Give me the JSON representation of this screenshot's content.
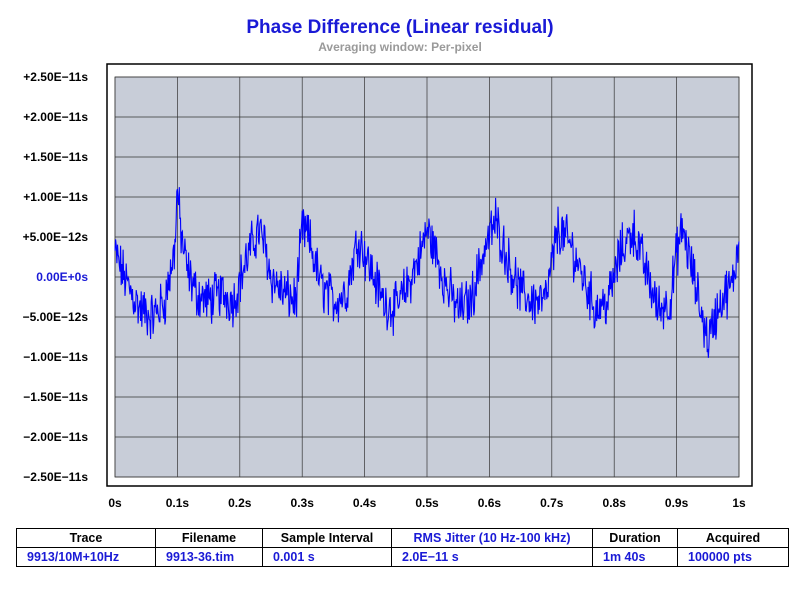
{
  "title": "Phase Difference (Linear residual)",
  "subtitle": "Averaging window: Per-pixel",
  "colors": {
    "trace": "#0000ff",
    "plot_bg": "#c8cdd8",
    "title": "#1a1ad6",
    "zero_label": "#1a1ad6"
  },
  "chart_data": {
    "type": "line",
    "title": "Phase Difference (Linear residual)",
    "subtitle": "Averaging window: Per-pixel",
    "xlabel": "",
    "ylabel": "",
    "xlim": [
      0,
      1
    ],
    "ylim": [
      -2.5e-11,
      2.5e-11
    ],
    "grid": true,
    "x_ticks": [
      0,
      0.1,
      0.2,
      0.3,
      0.4,
      0.5,
      0.6,
      0.7,
      0.8,
      0.9,
      1.0
    ],
    "x_tick_labels": [
      "0s",
      "0.1s",
      "0.2s",
      "0.3s",
      "0.4s",
      "0.5s",
      "0.6s",
      "0.7s",
      "0.8s",
      "0.9s",
      "1s"
    ],
    "y_ticks": [
      2.5e-11,
      2e-11,
      1.5e-11,
      1e-11,
      5e-12,
      0,
      -5e-12,
      -1e-11,
      -1.5e-11,
      -2e-11,
      -2.5e-11
    ],
    "y_tick_labels": [
      "+2.50E−11s",
      "+2.00E−11s",
      "+1.50E−11s",
      "+1.00E−11s",
      "+5.00E−12s",
      "0.00E+0s",
      "−5.00E−12s",
      "−1.00E−11s",
      "−1.50E−11s",
      "−2.00E−11s",
      "−2.50E−11s"
    ],
    "series": [
      {
        "x": [
          0,
          0.02,
          0.04,
          0.06,
          0.08,
          0.095,
          0.1,
          0.105,
          0.115,
          0.13,
          0.15,
          0.17,
          0.19,
          0.21,
          0.23,
          0.24,
          0.25,
          0.27,
          0.29,
          0.3,
          0.31,
          0.33,
          0.35,
          0.37,
          0.39,
          0.41,
          0.43,
          0.45,
          0.47,
          0.49,
          0.5,
          0.51,
          0.53,
          0.55,
          0.57,
          0.59,
          0.61,
          0.63,
          0.65,
          0.67,
          0.69,
          0.71,
          0.73,
          0.75,
          0.77,
          0.79,
          0.81,
          0.83,
          0.85,
          0.87,
          0.89,
          0.9,
          0.91,
          0.93,
          0.95,
          0.97,
          0.99,
          1.0
        ],
        "y": [
          3e-12,
          -1e-12,
          -4e-12,
          -5e-12,
          -3e-12,
          3e-12,
          1.1e-11,
          6e-12,
          1e-12,
          -2e-12,
          -3e-12,
          -2e-12,
          -3e-12,
          2e-12,
          6e-12,
          4e-12,
          0,
          -2e-12,
          -3e-12,
          6e-12,
          5e-12,
          -1e-12,
          -3e-12,
          -2e-12,
          5e-12,
          1e-12,
          -3e-12,
          -4e-12,
          -1e-12,
          3e-12,
          6e-12,
          4e-12,
          -1e-12,
          -4e-12,
          -3e-12,
          3e-12,
          7e-12,
          2e-12,
          -2e-12,
          -3e-12,
          -3e-12,
          6e-12,
          4e-12,
          0,
          -4e-12,
          -3e-12,
          3e-12,
          6e-12,
          1e-12,
          -4e-12,
          -3e-12,
          3e-12,
          6e-12,
          -1e-12,
          -8e-12,
          -3e-12,
          -1e-12,
          5e-12
        ]
      }
    ]
  },
  "table": {
    "headers": [
      "Trace",
      "Filename",
      "Sample Interval",
      "RMS Jitter (10 Hz-100 kHz)",
      "Duration",
      "Acquired"
    ],
    "row": [
      "9913/10M+10Hz",
      "9913-36.tim",
      "0.001 s",
      "2.0E−11 s",
      "1m 40s",
      "100000 pts"
    ]
  }
}
